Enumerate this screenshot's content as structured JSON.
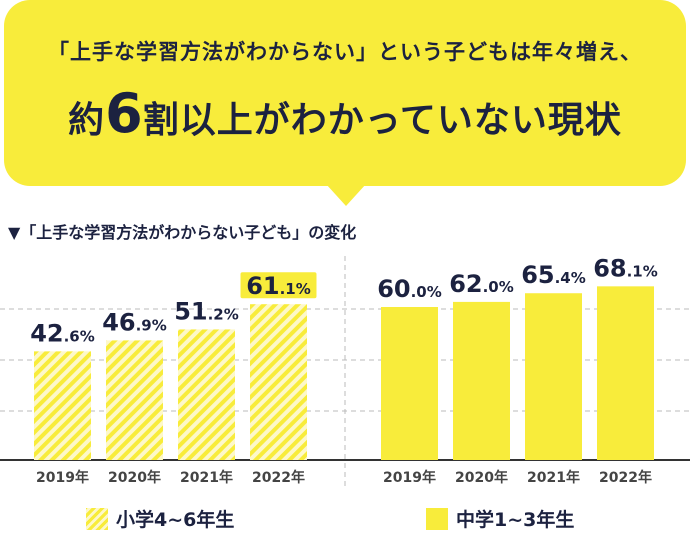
{
  "headline": {
    "line1": "「上手な学習方法がわからない」という子どもは年々増え、",
    "line2_prefix": "約",
    "line2_number": "6",
    "line2_mid": "割",
    "line2_suffix": "以上がわかっていない現状"
  },
  "chart_data": {
    "type": "bar",
    "title": "▼「上手な学習方法がわからない子ども」の変化",
    "ylim": [
      0,
      80
    ],
    "grid": true,
    "legend_position": "bottom",
    "groups": [
      {
        "name": "小学4~6年生",
        "style": "hatched",
        "categories": [
          "2019年",
          "2020年",
          "2021年",
          "2022年"
        ],
        "values": [
          42.6,
          46.9,
          51.2,
          61.1
        ],
        "labels": [
          {
            "int": "42",
            "dec": ".6%"
          },
          {
            "int": "46",
            "dec": ".9%"
          },
          {
            "int": "51",
            "dec": ".2%"
          },
          {
            "int": "61",
            "dec": ".1%"
          }
        ]
      },
      {
        "name": "中学1~3年生",
        "style": "solid",
        "categories": [
          "2019年",
          "2020年",
          "2021年",
          "2022年"
        ],
        "values": [
          60.0,
          62.0,
          65.4,
          68.1
        ],
        "labels": [
          {
            "int": "60",
            "dec": ".0%"
          },
          {
            "int": "62",
            "dec": ".0%"
          },
          {
            "int": "65",
            "dec": ".4%"
          },
          {
            "int": "68",
            "dec": ".1%"
          }
        ]
      }
    ]
  },
  "colors": {
    "accent": "#f8ec3b",
    "hatch_light": "#fdf8c9",
    "text": "#1c2240",
    "axis": "#333333",
    "grid": "#bbbbbb"
  },
  "legend": {
    "elementary": "小学4~6年生",
    "junior": "中学1~3年生"
  }
}
